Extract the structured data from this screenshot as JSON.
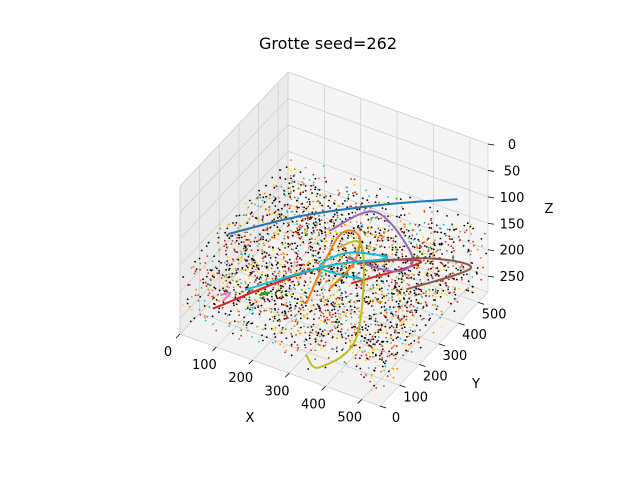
{
  "chart_data": {
    "type": "scatter",
    "projection": "3d",
    "title": "Grotte seed=262",
    "xlabel": "X",
    "ylabel": "Y",
    "zlabel": "Z",
    "xlim": [
      0,
      550
    ],
    "ylim": [
      0,
      550
    ],
    "zlim": [
      0,
      280
    ],
    "z_inverted": true,
    "grid": true,
    "legend": "none",
    "x_ticks": [
      "0",
      "100",
      "200",
      "300",
      "400",
      "500"
    ],
    "y_ticks": [
      "0",
      "100",
      "200",
      "300",
      "400",
      "500"
    ],
    "z_ticks": [
      "0",
      "50",
      "100",
      "150",
      "200",
      "250"
    ],
    "scatter_colors": [
      "#000000",
      "#d62728",
      "#ff7f0e",
      "#ffd700",
      "#17becf",
      "#2ca02c"
    ],
    "scatter_z_range": [
      150,
      260
    ],
    "scatter_approx_count": 3000,
    "series": [
      {
        "color": "#1f77b4",
        "points": [
          [
            80,
            100,
            110
          ],
          [
            200,
            250,
            105
          ],
          [
            350,
            400,
            105
          ],
          [
            480,
            520,
            110
          ]
        ]
      },
      {
        "color": "#ff7f0e",
        "points": [
          [
            250,
            180,
            230
          ],
          [
            300,
            250,
            120
          ],
          [
            330,
            300,
            130
          ],
          [
            300,
            330,
            200
          ],
          [
            260,
            280,
            240
          ]
        ]
      },
      {
        "color": "#2ca02c",
        "points": [
          [
            160,
            120,
            210
          ],
          [
            170,
            140,
            215
          ],
          [
            150,
            130,
            220
          ]
        ]
      },
      {
        "color": "#d62728",
        "points": [
          [
            60,
            60,
            240
          ],
          [
            250,
            280,
            200
          ],
          [
            420,
            450,
            215
          ],
          [
            300,
            320,
            235
          ]
        ]
      },
      {
        "color": "#9467bd",
        "points": [
          [
            250,
            300,
            140
          ],
          [
            350,
            350,
            100
          ],
          [
            450,
            350,
            160
          ],
          [
            400,
            350,
            200
          ],
          [
            300,
            300,
            180
          ]
        ]
      },
      {
        "color": "#8c564b",
        "points": [
          [
            300,
            350,
            210
          ],
          [
            450,
            420,
            190
          ],
          [
            530,
            500,
            220
          ],
          [
            420,
            380,
            240
          ]
        ]
      },
      {
        "color": "#e377c2",
        "points": [
          [
            70,
            80,
            220
          ],
          [
            90,
            90,
            215
          ],
          [
            80,
            70,
            225
          ]
        ]
      },
      {
        "color": "#bcbd22",
        "points": [
          [
            320,
            210,
            120
          ],
          [
            350,
            280,
            140
          ],
          [
            420,
            120,
            230
          ],
          [
            350,
            60,
            280
          ],
          [
            320,
            50,
            260
          ]
        ]
      },
      {
        "color": "#17becf",
        "points": [
          [
            100,
            150,
            230
          ],
          [
            250,
            280,
            200
          ],
          [
            380,
            350,
            180
          ],
          [
            300,
            300,
            170
          ],
          [
            250,
            250,
            190
          ],
          [
            350,
            280,
            200
          ]
        ]
      }
    ]
  }
}
